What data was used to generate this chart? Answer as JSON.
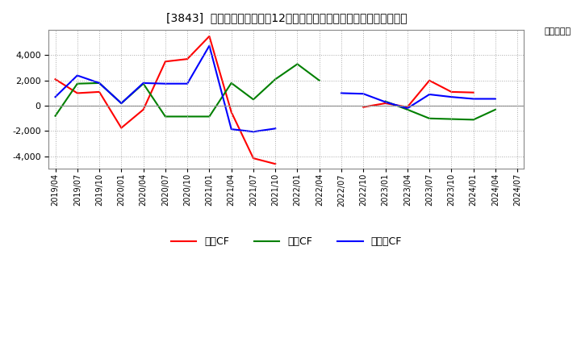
{
  "title": "[3843]  キャッシュフローの12か月移動合計の対前年同期増減額の推移",
  "ylabel": "（百万円）",
  "x_labels": [
    "2019/04",
    "2019/07",
    "2019/10",
    "2020/01",
    "2020/04",
    "2020/07",
    "2020/10",
    "2021/01",
    "2021/04",
    "2021/07",
    "2021/10",
    "2022/01",
    "2022/04",
    "2022/07",
    "2022/10",
    "2023/01",
    "2023/04",
    "2023/07",
    "2023/10",
    "2024/01",
    "2024/04",
    "2024/07"
  ],
  "operating_cf": [
    2100,
    1000,
    1100,
    -1750,
    -300,
    3500,
    3700,
    5500,
    -500,
    -4150,
    -4600,
    null,
    null,
    null,
    -100,
    200,
    -100,
    2000,
    1100,
    1050,
    null,
    null
  ],
  "investing_cf": [
    -800,
    1750,
    1800,
    200,
    1750,
    -850,
    -850,
    -850,
    1800,
    500,
    2100,
    3300,
    2000,
    null,
    null,
    350,
    -300,
    -1000,
    -1050,
    -1100,
    -300,
    null
  ],
  "free_cf": [
    700,
    2400,
    1800,
    200,
    1800,
    1750,
    1750,
    4750,
    -1850,
    -2050,
    -1800,
    null,
    null,
    1000,
    950,
    300,
    -200,
    900,
    700,
    550,
    550,
    null
  ],
  "ylim": [
    -5000,
    6000
  ],
  "yticks": [
    -4000,
    -2000,
    0,
    2000,
    4000
  ],
  "colors": {
    "operating": "#ff0000",
    "investing": "#008000",
    "free": "#0000ff"
  },
  "legend_labels": [
    "営業CF",
    "投資CF",
    "フリーCF"
  ],
  "bg_color": "#ffffff",
  "grid_color": "#aaaaaa"
}
